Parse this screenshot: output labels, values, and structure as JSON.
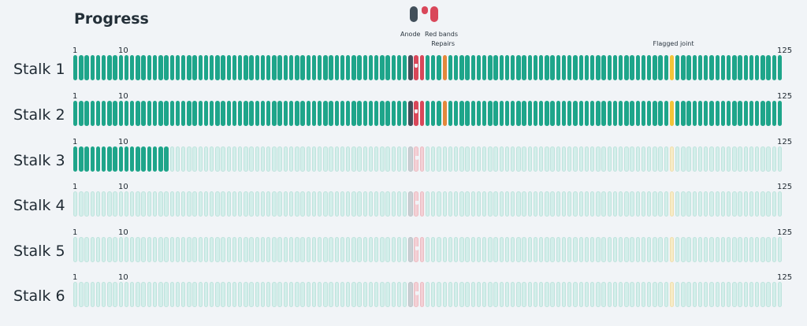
{
  "title": "Progress",
  "legend": [
    {
      "label": "Anode",
      "color": "#414f5a",
      "icon": "anode-pill-icon"
    },
    {
      "label": "Red bands",
      "color": "#d9475a",
      "icon": "red-band-pill-icon"
    }
  ],
  "segment_count": 125,
  "tick_labels": [
    "1",
    "10",
    "125"
  ],
  "segment_types": {
    "anode": [
      60
    ],
    "red_band": [
      61,
      62
    ],
    "repair": [
      66
    ],
    "flagged_joint": [
      106
    ]
  },
  "annotations": [
    {
      "text": "Repairs",
      "segment": 66
    },
    {
      "text": "Flagged joint",
      "segment": 106
    }
  ],
  "colors": {
    "complete": "#1ea58a",
    "pending": "#d3eeea",
    "anode": "#414f5a",
    "red_band": "#d9475a",
    "repair": "#e3883b",
    "flagged_joint": "#f2c43a"
  },
  "stalks": [
    {
      "name": "Stalk 1",
      "completed_segments": 125
    },
    {
      "name": "Stalk 2",
      "completed_segments": 125
    },
    {
      "name": "Stalk 3",
      "completed_segments": 17
    },
    {
      "name": "Stalk 4",
      "completed_segments": 0
    },
    {
      "name": "Stalk 5",
      "completed_segments": 0
    },
    {
      "name": "Stalk 6",
      "completed_segments": 0
    }
  ]
}
